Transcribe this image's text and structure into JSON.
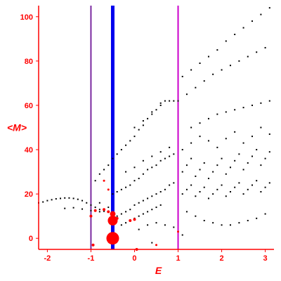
{
  "chart_data": {
    "type": "scatter",
    "title": "",
    "xlabel": "E",
    "ylabel": "<M>",
    "xlim": [
      -2.2,
      3.2
    ],
    "ylim": [
      -5,
      105
    ],
    "xticks": [
      -2,
      -1,
      0,
      1,
      2,
      3
    ],
    "yticks": [
      0,
      20,
      40,
      60,
      80,
      100
    ],
    "grid": false,
    "legend": "none",
    "colors": {
      "axis": "#ff0000",
      "points": "#000000",
      "highlight": "#ff0000",
      "line_magenta": "#cc00cc",
      "line_purple": "#7a2aa0",
      "line_blue": "#0000ee"
    },
    "vertical_lines": [
      {
        "x": -1.0,
        "color": "#7a2aa0"
      },
      {
        "x": -0.5,
        "color": "#0000ee"
      },
      {
        "x": 1.0,
        "color": "#cc00cc"
      }
    ],
    "black_points": [
      [
        -2.2,
        16.0
      ],
      [
        -2.1,
        16.4
      ],
      [
        -2.0,
        17.0
      ],
      [
        -1.9,
        17.4
      ],
      [
        -1.8,
        17.8
      ],
      [
        -1.7,
        18.0
      ],
      [
        -1.6,
        18.2
      ],
      [
        -1.5,
        18.2
      ],
      [
        -1.4,
        18.0
      ],
      [
        -1.3,
        17.6
      ],
      [
        -1.2,
        17.0
      ],
      [
        -1.1,
        16.0
      ],
      [
        -1.0,
        15.0
      ],
      [
        -0.9,
        14.0
      ],
      [
        -0.8,
        13.0
      ],
      [
        -0.7,
        12.2
      ],
      [
        -0.6,
        11.8
      ],
      [
        -1.6,
        13.5
      ],
      [
        -1.4,
        13.8
      ],
      [
        -1.2,
        13.2
      ],
      [
        -1.0,
        12.5
      ],
      [
        -0.8,
        12.0
      ],
      [
        -0.9,
        26.0
      ],
      [
        -0.8,
        29.0
      ],
      [
        -0.7,
        31.0
      ],
      [
        -0.6,
        33.0
      ],
      [
        -0.5,
        36.0
      ],
      [
        -0.4,
        38.0
      ],
      [
        -0.3,
        40.0
      ],
      [
        -0.2,
        42.0
      ],
      [
        -0.1,
        44.0
      ],
      [
        0.0,
        46.0
      ],
      [
        0.1,
        49.0
      ],
      [
        0.2,
        51.0
      ],
      [
        0.3,
        54.0
      ],
      [
        0.4,
        56.0
      ],
      [
        0.5,
        58.0
      ],
      [
        0.6,
        60.0
      ],
      [
        0.7,
        62.0
      ],
      [
        0.8,
        62.0
      ],
      [
        0.9,
        62.0
      ],
      [
        1.0,
        62.0
      ],
      [
        0.0,
        50.0
      ],
      [
        0.2,
        53.0
      ],
      [
        0.4,
        57.0
      ],
      [
        0.6,
        61.0
      ],
      [
        1.1,
        73.0
      ],
      [
        1.3,
        76.0
      ],
      [
        1.5,
        79.0
      ],
      [
        1.7,
        82.0
      ],
      [
        1.9,
        85.0
      ],
      [
        2.1,
        89.0
      ],
      [
        2.3,
        92.0
      ],
      [
        2.5,
        95.0
      ],
      [
        2.7,
        98.0
      ],
      [
        2.9,
        101.0
      ],
      [
        3.1,
        104.0
      ],
      [
        1.2,
        65.0
      ],
      [
        1.4,
        68.0
      ],
      [
        1.6,
        71.0
      ],
      [
        1.8,
        74.0
      ],
      [
        2.0,
        76.0
      ],
      [
        2.2,
        78.0
      ],
      [
        2.4,
        80.0
      ],
      [
        2.6,
        82.0
      ],
      [
        2.8,
        84.0
      ],
      [
        3.0,
        86.0
      ],
      [
        1.3,
        50.0
      ],
      [
        1.5,
        52.0
      ],
      [
        1.7,
        54.0
      ],
      [
        1.9,
        56.0
      ],
      [
        2.1,
        57.0
      ],
      [
        2.3,
        58.0
      ],
      [
        2.5,
        59.0
      ],
      [
        2.7,
        60.0
      ],
      [
        2.9,
        61.0
      ],
      [
        3.1,
        62.0
      ],
      [
        -0.5,
        20.0
      ],
      [
        -0.4,
        21.0
      ],
      [
        -0.3,
        22.0
      ],
      [
        -0.2,
        23.0
      ],
      [
        -0.1,
        24.0
      ],
      [
        0.0,
        26.0
      ],
      [
        0.1,
        27.0
      ],
      [
        0.2,
        29.0
      ],
      [
        0.3,
        31.0
      ],
      [
        0.4,
        32.0
      ],
      [
        0.5,
        33.0
      ],
      [
        0.6,
        35.0
      ],
      [
        0.7,
        36.0
      ],
      [
        0.8,
        37.0
      ],
      [
        0.9,
        38.0
      ],
      [
        -0.4,
        10.0
      ],
      [
        -0.3,
        11.0
      ],
      [
        -0.2,
        12.0
      ],
      [
        -0.1,
        13.0
      ],
      [
        0.0,
        15.0
      ],
      [
        0.1,
        16.0
      ],
      [
        0.2,
        17.0
      ],
      [
        0.3,
        18.0
      ],
      [
        0.4,
        19.0
      ],
      [
        0.5,
        20.0
      ],
      [
        0.6,
        21.0
      ],
      [
        0.7,
        22.0
      ],
      [
        0.8,
        24.0
      ],
      [
        0.9,
        25.0
      ],
      [
        -0.3,
        6.0
      ],
      [
        -0.2,
        7.0
      ],
      [
        -0.1,
        8.0
      ],
      [
        0.0,
        9.0
      ],
      [
        0.1,
        10.0
      ],
      [
        0.2,
        11.0
      ],
      [
        0.3,
        12.0
      ],
      [
        0.4,
        13.0
      ],
      [
        0.5,
        14.0
      ],
      [
        0.6,
        15.0
      ],
      [
        -0.2,
        30.0
      ],
      [
        0.0,
        32.0
      ],
      [
        0.2,
        35.0
      ],
      [
        0.4,
        37.0
      ],
      [
        0.6,
        39.0
      ],
      [
        0.8,
        41.0
      ],
      [
        1.1,
        30.0
      ],
      [
        1.2,
        33.0
      ],
      [
        1.3,
        36.0
      ],
      [
        1.4,
        28.0
      ],
      [
        1.5,
        31.0
      ],
      [
        1.6,
        34.0
      ],
      [
        1.7,
        27.0
      ],
      [
        1.8,
        30.0
      ],
      [
        1.9,
        33.0
      ],
      [
        2.0,
        36.0
      ],
      [
        2.1,
        29.0
      ],
      [
        2.2,
        32.0
      ],
      [
        2.3,
        35.0
      ],
      [
        2.4,
        38.0
      ],
      [
        2.5,
        31.0
      ],
      [
        2.6,
        34.0
      ],
      [
        2.7,
        37.0
      ],
      [
        2.8,
        40.0
      ],
      [
        2.9,
        33.0
      ],
      [
        3.0,
        36.0
      ],
      [
        3.1,
        39.0
      ],
      [
        1.1,
        20.0
      ],
      [
        1.2,
        22.0
      ],
      [
        1.3,
        24.0
      ],
      [
        1.4,
        19.0
      ],
      [
        1.5,
        21.0
      ],
      [
        1.6,
        23.0
      ],
      [
        1.7,
        18.0
      ],
      [
        1.8,
        20.0
      ],
      [
        1.9,
        22.0
      ],
      [
        2.0,
        24.0
      ],
      [
        2.1,
        19.0
      ],
      [
        2.2,
        21.0
      ],
      [
        2.3,
        23.0
      ],
      [
        2.4,
        25.0
      ],
      [
        2.5,
        20.0
      ],
      [
        2.6,
        22.0
      ],
      [
        2.7,
        24.0
      ],
      [
        2.8,
        26.0
      ],
      [
        2.9,
        21.0
      ],
      [
        3.0,
        23.0
      ],
      [
        3.1,
        25.0
      ],
      [
        1.1,
        40.0
      ],
      [
        1.3,
        43.0
      ],
      [
        1.5,
        46.0
      ],
      [
        1.7,
        44.0
      ],
      [
        1.9,
        41.0
      ],
      [
        2.1,
        45.0
      ],
      [
        2.3,
        48.0
      ],
      [
        2.5,
        43.0
      ],
      [
        2.7,
        46.0
      ],
      [
        2.9,
        50.0
      ],
      [
        3.1,
        47.0
      ],
      [
        1.2,
        12.0
      ],
      [
        1.4,
        10.0
      ],
      [
        1.6,
        8.0
      ],
      [
        1.8,
        7.0
      ],
      [
        2.0,
        6.0
      ],
      [
        2.2,
        6.0
      ],
      [
        2.4,
        7.0
      ],
      [
        2.6,
        8.0
      ],
      [
        2.8,
        9.0
      ],
      [
        3.0,
        11.0
      ],
      [
        0.1,
        4.0
      ],
      [
        0.3,
        6.0
      ],
      [
        0.5,
        7.0
      ],
      [
        0.7,
        6.0
      ],
      [
        0.9,
        5.0
      ],
      [
        1.1,
        1.5
      ],
      [
        0.4,
        -2.0
      ],
      [
        -0.8,
        16.0
      ],
      [
        -0.6,
        14.0
      ]
    ],
    "red_points": [
      {
        "x": -0.5,
        "y": 0.0,
        "r": 9
      },
      {
        "x": -0.5,
        "y": 8.0,
        "r": 7
      },
      {
        "x": -0.5,
        "y": 11.0,
        "r": 4
      },
      {
        "x": -0.6,
        "y": 12.0,
        "r": 2
      },
      {
        "x": -0.7,
        "y": 13.0,
        "r": 2
      },
      {
        "x": -0.4,
        "y": 9.0,
        "r": 2
      },
      {
        "x": 0.0,
        "y": 8.5,
        "r": 2
      },
      {
        "x": -0.1,
        "y": 8.0,
        "r": 2
      },
      {
        "x": -0.9,
        "y": 12.5,
        "r": 2
      },
      {
        "x": -1.0,
        "y": 10.0,
        "r": 2
      },
      {
        "x": -0.95,
        "y": -3.0,
        "r": 2
      },
      {
        "x": -0.6,
        "y": 22.0,
        "r": 1.5
      },
      {
        "x": -0.7,
        "y": 26.0,
        "r": 1.5
      },
      {
        "x": 0.05,
        "y": -5.0,
        "r": 2
      },
      {
        "x": 0.5,
        "y": -3.0,
        "r": 1.5
      },
      {
        "x": 1.0,
        "y": 3.0,
        "r": 1.5
      }
    ]
  }
}
